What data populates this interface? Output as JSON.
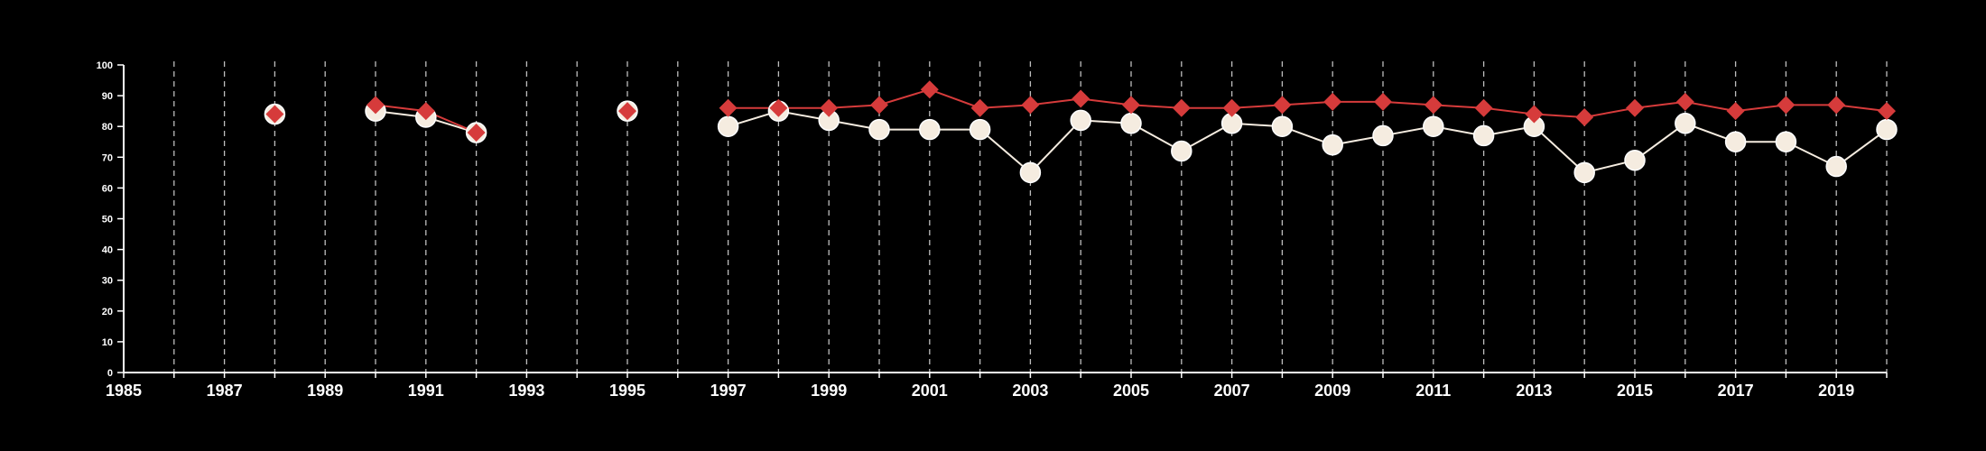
{
  "chart_data": {
    "type": "line",
    "xlim": [
      1985,
      2020
    ],
    "ylim": [
      0,
      100
    ],
    "grid": "vertical dashed lines at each year",
    "legend": "none",
    "x_tick_labels": [
      "1985",
      "1987",
      "1989",
      "1991",
      "1993",
      "1995",
      "1997",
      "1999",
      "2001",
      "2003",
      "2005",
      "2007",
      "2009",
      "2011",
      "2013",
      "2015",
      "2017",
      "2019"
    ],
    "y_tick_labels": [
      "0",
      "10",
      "20",
      "30",
      "40",
      "50",
      "60",
      "70",
      "80",
      "90",
      "100"
    ],
    "x": [
      1988,
      1990,
      1991,
      1992,
      1995,
      1997,
      1998,
      1999,
      2000,
      2001,
      2002,
      2003,
      2004,
      2005,
      2006,
      2007,
      2008,
      2009,
      2010,
      2011,
      2012,
      2013,
      2014,
      2015,
      2016,
      2017,
      2018,
      2019,
      2020
    ],
    "series": [
      {
        "marker": "circle",
        "color": "#f5ece0",
        "values": [
          84,
          85,
          83,
          78,
          85,
          80,
          85,
          82,
          79,
          79,
          79,
          65,
          82,
          81,
          72,
          81,
          80,
          74,
          77,
          80,
          77,
          80,
          65,
          69,
          81,
          75,
          75,
          67,
          79
        ]
      },
      {
        "marker": "diamond",
        "color": "#d63b3b",
        "values": [
          84,
          87,
          85,
          78,
          85,
          86,
          86,
          86,
          87,
          92,
          86,
          87,
          89,
          87,
          86,
          86,
          87,
          88,
          88,
          87,
          86,
          84,
          83,
          86,
          88,
          85,
          87,
          87,
          85
        ]
      }
    ]
  }
}
